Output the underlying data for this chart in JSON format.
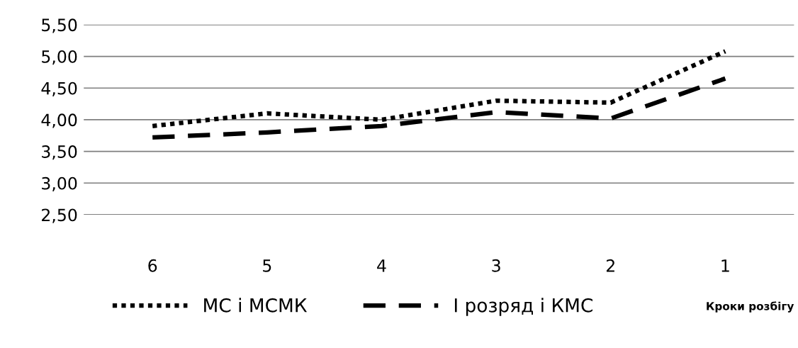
{
  "chart_data": {
    "type": "line",
    "categories": [
      "6",
      "5",
      "4",
      "3",
      "2",
      "1"
    ],
    "series": [
      {
        "name": "МС і МСМК",
        "color": "#000000",
        "line_style": "dotted",
        "values": [
          3.9,
          4.1,
          4.0,
          4.3,
          4.27,
          5.08
        ]
      },
      {
        "name": "I розряд і КМС",
        "color": "#000000",
        "line_style": "dashed",
        "values": [
          3.72,
          3.8,
          3.9,
          4.12,
          4.02,
          4.65
        ]
      }
    ],
    "xlabel": "Кроки розбігу",
    "ylim": [
      2.5,
      5.5
    ],
    "yticks": [
      {
        "value": 2.5,
        "label": "2,50"
      },
      {
        "value": 3.0,
        "label": "3,00"
      },
      {
        "value": 3.5,
        "label": "3,50"
      },
      {
        "value": 4.0,
        "label": "4,00"
      },
      {
        "value": 4.5,
        "label": "4,50"
      },
      {
        "value": 5.0,
        "label": "5,00"
      },
      {
        "value": 5.5,
        "label": "5,50"
      }
    ],
    "grid": "y",
    "legend": "bottom",
    "marker": "none"
  }
}
